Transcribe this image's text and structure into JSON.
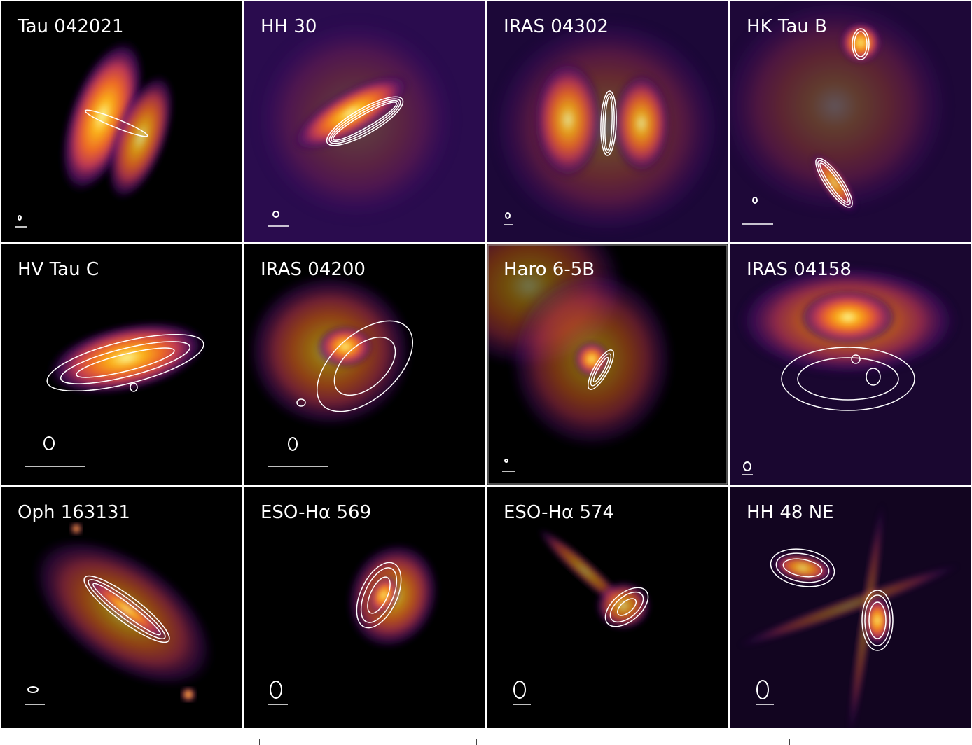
{
  "figure": {
    "colormap": "inferno",
    "contour_color": "#ffffff",
    "panels": [
      {
        "label": "Tau 042021"
      },
      {
        "label": "HH 30"
      },
      {
        "label": "IRAS 04302"
      },
      {
        "label": "HK Tau B"
      },
      {
        "label": "HV Tau C"
      },
      {
        "label": "IRAS 04200"
      },
      {
        "label": "Haro 6-5B"
      },
      {
        "label": "IRAS 04158"
      },
      {
        "label": "Oph 163131"
      },
      {
        "label": "ESO-Hα 569"
      },
      {
        "label": "ESO-Hα 574"
      },
      {
        "label": "HH 48 NE"
      }
    ]
  }
}
